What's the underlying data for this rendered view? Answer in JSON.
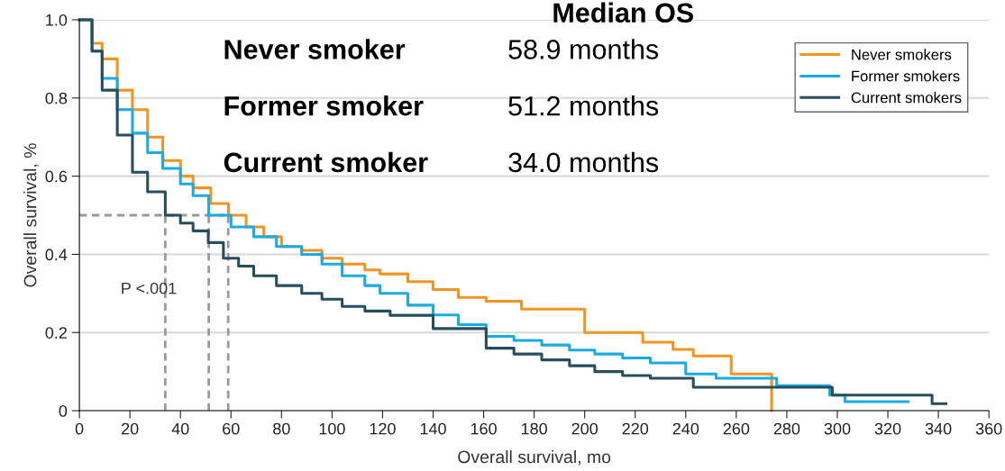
{
  "chart_data": {
    "type": "step",
    "xlabel": "Overall survival, mo",
    "ylabel": "Overall survival, %",
    "xlim": [
      0,
      360
    ],
    "xticks": [
      0,
      20,
      40,
      60,
      80,
      100,
      120,
      140,
      160,
      180,
      200,
      220,
      240,
      260,
      280,
      300,
      320,
      340,
      360
    ],
    "ylim": [
      0,
      1.0
    ],
    "yticks": [
      0,
      0.2,
      0.4,
      0.6,
      0.8,
      {
        "value": 1.0,
        "label": "1.0"
      }
    ],
    "grid": "y",
    "legend": "top right",
    "annotations": [
      "Median OS",
      "Never smoker",
      "58.9 months",
      "Former smoker",
      "51.2 months",
      "Current smoker",
      "34.0 months",
      "P <.001"
    ],
    "ref_lines": [
      {
        "axis": "y",
        "value": 0.5,
        "color": "#9a9a9a",
        "line_style": "dashed"
      },
      {
        "axis": "x",
        "value": 34.0,
        "color": "#9a9a9a",
        "line_style": "dashed"
      },
      {
        "axis": "x",
        "value": 51.2,
        "color": "#9a9a9a",
        "line_style": "dashed"
      },
      {
        "axis": "x",
        "value": 58.9,
        "color": "#9a9a9a",
        "line_style": "dashed"
      }
    ],
    "series": [
      {
        "name": "Never smokers",
        "color": "#f29422",
        "x": [
          0,
          5,
          9,
          15,
          21,
          27,
          33,
          40,
          45,
          52,
          59,
          66,
          73,
          80,
          88,
          96,
          104,
          113,
          119,
          130,
          140,
          150,
          161,
          175,
          195,
          200,
          223,
          235,
          243,
          258,
          274,
          274
        ],
        "values": [
          1.0,
          0.94,
          0.9,
          0.82,
          0.77,
          0.7,
          0.64,
          0.6,
          0.57,
          0.53,
          0.5,
          0.47,
          0.445,
          0.42,
          0.41,
          0.39,
          0.375,
          0.36,
          0.35,
          0.33,
          0.31,
          0.29,
          0.28,
          0.26,
          0.26,
          0.2,
          0.175,
          0.157,
          0.14,
          0.094,
          0.094,
          0.0
        ]
      },
      {
        "name": "Former smokers",
        "color": "#1aabe3",
        "x": [
          0,
          5,
          9,
          15,
          21,
          27,
          33,
          40,
          45,
          51.2,
          60,
          69,
          78,
          88,
          96,
          104,
          113,
          119,
          130,
          140,
          150,
          161,
          172,
          183,
          194,
          204,
          215,
          226,
          240,
          252,
          276,
          297,
          303,
          328
        ],
        "values": [
          1.0,
          0.92,
          0.85,
          0.77,
          0.71,
          0.66,
          0.62,
          0.58,
          0.55,
          0.5,
          0.47,
          0.445,
          0.42,
          0.4,
          0.375,
          0.345,
          0.32,
          0.3,
          0.27,
          0.245,
          0.22,
          0.19,
          0.18,
          0.168,
          0.155,
          0.145,
          0.135,
          0.122,
          0.094,
          0.083,
          0.064,
          0.04,
          0.023,
          0.023
        ]
      },
      {
        "name": "Current smokers",
        "color": "#264e5e",
        "x": [
          0,
          5,
          9,
          15,
          21,
          27,
          34,
          40,
          45,
          51,
          57,
          63,
          69,
          78,
          88,
          96,
          104,
          113,
          123,
          140,
          161,
          172,
          183,
          194,
          204,
          215,
          226,
          243,
          258,
          298,
          337.5,
          343
        ],
        "values": [
          1.0,
          0.92,
          0.82,
          0.705,
          0.61,
          0.56,
          0.5,
          0.48,
          0.46,
          0.43,
          0.39,
          0.37,
          0.345,
          0.32,
          0.3,
          0.285,
          0.267,
          0.255,
          0.244,
          0.21,
          0.16,
          0.145,
          0.13,
          0.115,
          0.1,
          0.09,
          0.083,
          0.06,
          0.06,
          0.04,
          0.018,
          0.018
        ]
      }
    ]
  }
}
